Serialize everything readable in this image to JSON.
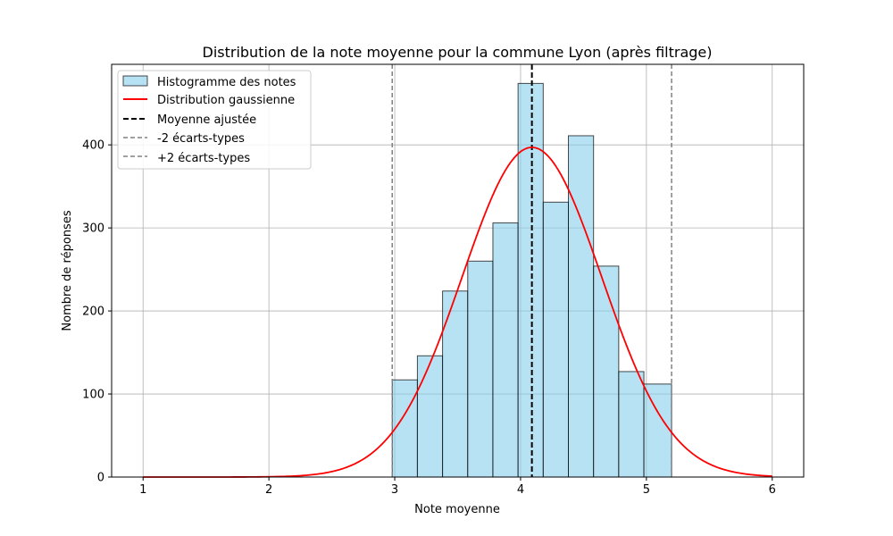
{
  "chart_data": {
    "type": "bar",
    "title": "Distribution de la note moyenne pour la commune Lyon (après filtrage)",
    "xlabel": "Note moyenne",
    "ylabel": "Nombre de réponses",
    "xlim": [
      0.75,
      6.25
    ],
    "ylim": [
      0,
      497
    ],
    "xticks": [
      "1",
      "2",
      "3",
      "4",
      "5",
      "6"
    ],
    "yticks": [
      "0",
      "100",
      "200",
      "300",
      "400"
    ],
    "grid": true,
    "legend_position": "top-left",
    "histogram": {
      "name": "Histogramme des notes",
      "bin_edges": [
        2.98,
        3.18,
        3.38,
        3.58,
        3.78,
        3.98,
        4.18,
        4.38,
        4.58,
        4.78,
        4.98,
        5.2
      ],
      "counts": [
        117,
        146,
        224,
        260,
        306,
        474,
        331,
        411,
        254,
        127,
        112
      ],
      "color": "#87ceeb"
    },
    "gaussian": {
      "name": "Distribution gaussienne",
      "mean": 4.09,
      "std": 0.555,
      "peak": 397,
      "x_range": [
        1,
        6
      ],
      "color": "#ff0000"
    },
    "mean_line": {
      "name": "Moyenne ajustée",
      "x": 4.09,
      "color": "#000000"
    },
    "minus_2sd_line": {
      "name": "-2 écarts-types",
      "x": 2.98,
      "color": "#808080"
    },
    "plus_2sd_line": {
      "name": "+2 écarts-types",
      "x": 5.2,
      "color": "#808080"
    }
  }
}
